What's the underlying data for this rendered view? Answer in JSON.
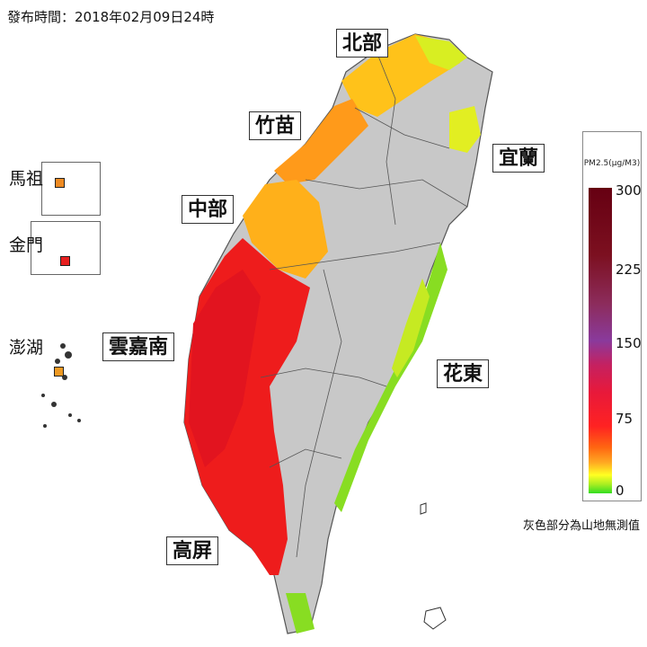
{
  "publish_time": "發布時間：2018年02月09日24時",
  "regions": {
    "north": "北部",
    "zhumiao": "竹苗",
    "central": "中部",
    "yunjianan": "雲嘉南",
    "gaoping": "高屏",
    "yilan": "宜蘭",
    "huadong": "花東"
  },
  "islands": {
    "matsu": "馬祖",
    "kinmen": "金門",
    "penghu": "澎湖"
  },
  "legend": {
    "title": "PM2.5(μg/M3)",
    "ticks": [
      "300",
      "225",
      "150",
      "75",
      "0"
    ],
    "colors": {
      "low": "#33dd22",
      "yellow": "#ffff22",
      "orange": "#ff8c1a",
      "red": "#ff2222",
      "purple": "#8a3a9c",
      "high": "#660012"
    }
  },
  "footnote": "灰色部分為山地無測值"
}
